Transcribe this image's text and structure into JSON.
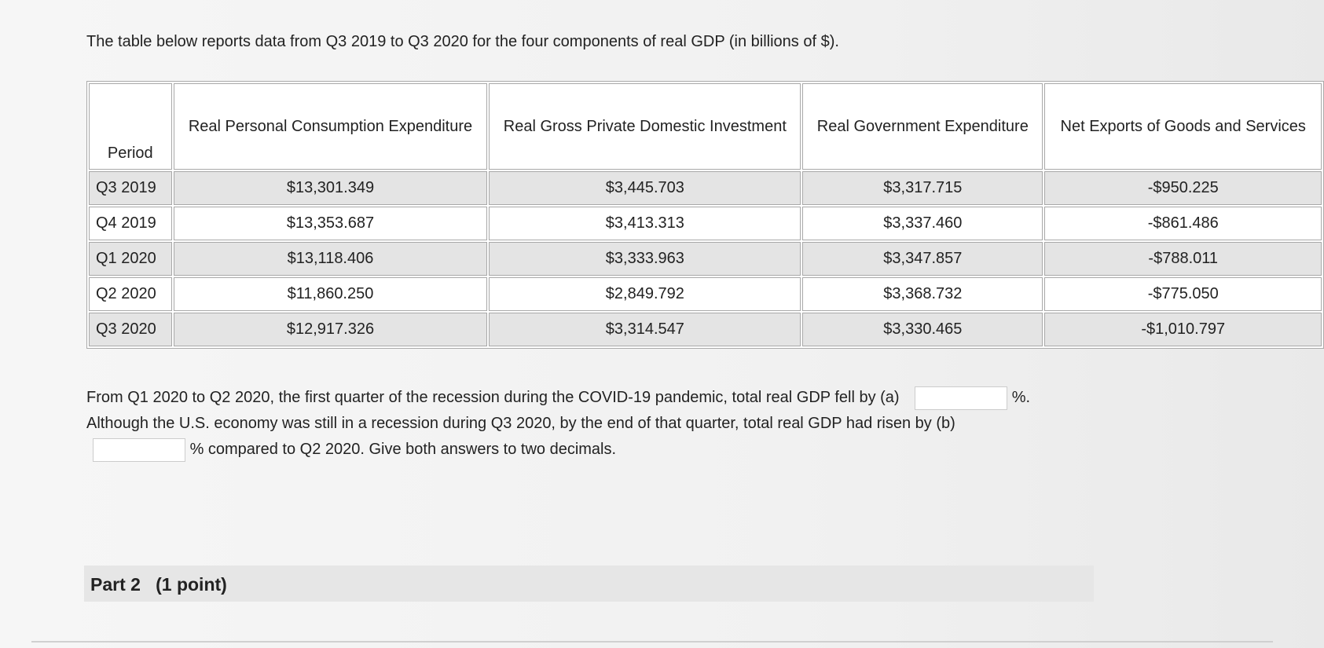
{
  "intro": "The table below reports data from Q3 2019 to Q3 2020 for the four components of real GDP (in billions of $).",
  "table": {
    "header": [
      "Period",
      "Real Personal Consumption Expenditure",
      "Real Gross Private Domestic Investment",
      "Real Government Expenditure",
      "Net Exports of Goods and Services"
    ],
    "rows": [
      [
        "Q3 2019",
        "$13,301.349",
        "$3,445.703",
        "$3,317.715",
        "-$950.225"
      ],
      [
        "Q4 2019",
        "$13,353.687",
        "$3,413.313",
        "$3,337.460",
        "-$861.486"
      ],
      [
        "Q1 2020",
        "$13,118.406",
        "$3,333.963",
        "$3,347.857",
        "-$788.011"
      ],
      [
        "Q2 2020",
        "$11,860.250",
        "$2,849.792",
        "$3,368.732",
        "-$775.050"
      ],
      [
        "Q3 2020",
        "$12,917.326",
        "$3,314.547",
        "$3,330.465",
        "-$1,010.797"
      ]
    ]
  },
  "question": {
    "part_a_text": "From Q1 2020 to Q2 2020, the first quarter of the recession during the COVID-19 pandemic, total real GDP fell by (a)",
    "part_a_suffix": "%.",
    "part_b_text": "Although the U.S. economy was still in a recession during Q3 2020, by the end of that quarter, total real GDP had risen by (b)",
    "part_b_suffix": "% compared to Q2 2020. Give both answers to two decimals."
  },
  "part2": {
    "title": "Part 2",
    "points": "(1 point)"
  }
}
